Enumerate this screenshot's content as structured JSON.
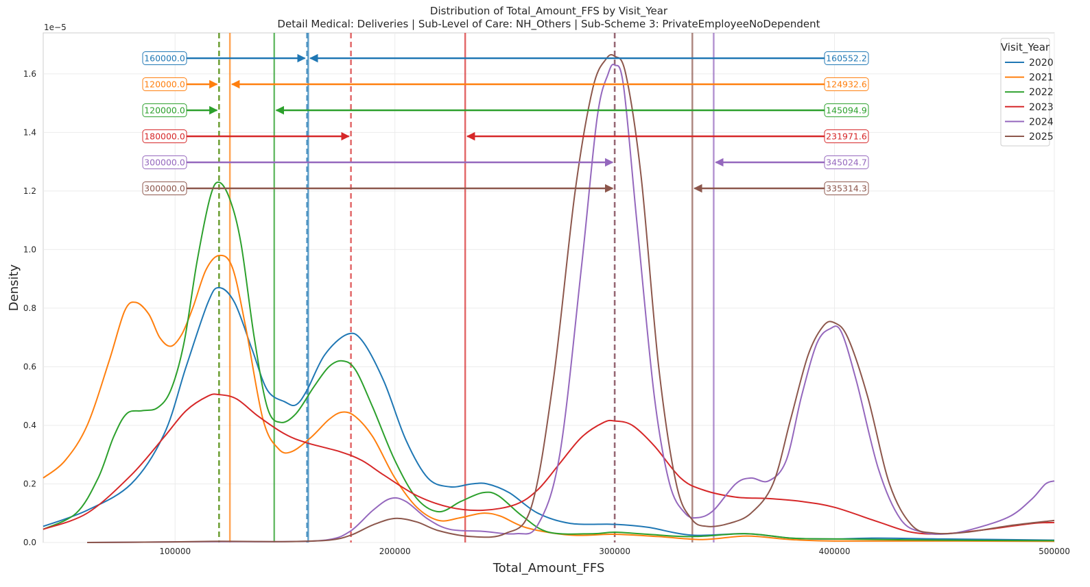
{
  "chart_data": {
    "type": "line",
    "title": "Distribution of Total_Amount_FFS by Visit_Year",
    "subtitle": "Detail Medical: Deliveries | Sub-Level of Care: NH_Others | Sub-Scheme 3: PrivateEmployeeNoDependent",
    "xlabel": "Total_Amount_FFS",
    "ylabel": "Density",
    "y_offset_label": "1e−5",
    "xlim": [
      40000,
      500000
    ],
    "ylim": [
      0,
      1.74
    ],
    "y_units_note": "values shown in units of 1e-5",
    "x_ticks": [
      100000,
      200000,
      300000,
      400000,
      500000
    ],
    "y_ticks": [
      0.0,
      0.2,
      0.4,
      0.6,
      0.8,
      1.0,
      1.2,
      1.4,
      1.6
    ],
    "grid": true,
    "legend_title": "Visit_Year",
    "legend_position": "top-right",
    "series": [
      {
        "name": "2020",
        "color": "#1f77b4",
        "median": 160000.0,
        "mean": 160552.2,
        "median_label": "160000.0",
        "mean_label": "160552.2",
        "points": [
          [
            40000,
            0.055
          ],
          [
            60000,
            0.11
          ],
          [
            80000,
            0.2
          ],
          [
            95000,
            0.37
          ],
          [
            105000,
            0.6
          ],
          [
            115000,
            0.82
          ],
          [
            120000,
            0.87
          ],
          [
            127000,
            0.82
          ],
          [
            135000,
            0.66
          ],
          [
            142000,
            0.52
          ],
          [
            150000,
            0.48
          ],
          [
            155000,
            0.47
          ],
          [
            160000,
            0.52
          ],
          [
            168000,
            0.64
          ],
          [
            178000,
            0.71
          ],
          [
            185000,
            0.69
          ],
          [
            195000,
            0.55
          ],
          [
            205000,
            0.35
          ],
          [
            215000,
            0.22
          ],
          [
            225000,
            0.19
          ],
          [
            235000,
            0.2
          ],
          [
            242000,
            0.2
          ],
          [
            252000,
            0.17
          ],
          [
            265000,
            0.1
          ],
          [
            280000,
            0.065
          ],
          [
            300000,
            0.062
          ],
          [
            315000,
            0.052
          ],
          [
            335000,
            0.025
          ],
          [
            360000,
            0.03
          ],
          [
            380000,
            0.015
          ],
          [
            400000,
            0.012
          ],
          [
            420000,
            0.015
          ],
          [
            450000,
            0.012
          ],
          [
            500000,
            0.008
          ]
        ]
      },
      {
        "name": "2021",
        "color": "#ff7f0e",
        "median": 120000.0,
        "mean": 124932.6,
        "median_label": "120000.0",
        "mean_label": "124932.6",
        "points": [
          [
            40000,
            0.22
          ],
          [
            50000,
            0.28
          ],
          [
            60000,
            0.4
          ],
          [
            70000,
            0.62
          ],
          [
            77000,
            0.79
          ],
          [
            82000,
            0.82
          ],
          [
            88000,
            0.78
          ],
          [
            93000,
            0.7
          ],
          [
            98000,
            0.67
          ],
          [
            103000,
            0.71
          ],
          [
            108000,
            0.8
          ],
          [
            114000,
            0.93
          ],
          [
            120000,
            0.98
          ],
          [
            126000,
            0.94
          ],
          [
            132000,
            0.74
          ],
          [
            140000,
            0.42
          ],
          [
            147000,
            0.32
          ],
          [
            153000,
            0.31
          ],
          [
            162000,
            0.36
          ],
          [
            170000,
            0.42
          ],
          [
            176000,
            0.445
          ],
          [
            182000,
            0.43
          ],
          [
            190000,
            0.36
          ],
          [
            200000,
            0.22
          ],
          [
            210000,
            0.12
          ],
          [
            220000,
            0.075
          ],
          [
            230000,
            0.085
          ],
          [
            240000,
            0.1
          ],
          [
            248000,
            0.09
          ],
          [
            260000,
            0.05
          ],
          [
            280000,
            0.025
          ],
          [
            300000,
            0.028
          ],
          [
            320000,
            0.02
          ],
          [
            340000,
            0.01
          ],
          [
            360000,
            0.022
          ],
          [
            380000,
            0.01
          ],
          [
            400000,
            0.005
          ],
          [
            450000,
            0.005
          ],
          [
            500000,
            0.004
          ]
        ]
      },
      {
        "name": "2022",
        "color": "#2ca02c",
        "median": 120000.0,
        "mean": 145094.9,
        "median_label": "120000.0",
        "mean_label": "145094.9",
        "points": [
          [
            40000,
            0.045
          ],
          [
            55000,
            0.1
          ],
          [
            65000,
            0.22
          ],
          [
            72000,
            0.36
          ],
          [
            78000,
            0.44
          ],
          [
            85000,
            0.45
          ],
          [
            92000,
            0.46
          ],
          [
            98000,
            0.52
          ],
          [
            104000,
            0.68
          ],
          [
            110000,
            0.96
          ],
          [
            116000,
            1.18
          ],
          [
            120000,
            1.23
          ],
          [
            125000,
            1.17
          ],
          [
            130000,
            1.02
          ],
          [
            136000,
            0.7
          ],
          [
            142000,
            0.46
          ],
          [
            148000,
            0.41
          ],
          [
            155000,
            0.44
          ],
          [
            163000,
            0.53
          ],
          [
            170000,
            0.6
          ],
          [
            176000,
            0.62
          ],
          [
            182000,
            0.59
          ],
          [
            190000,
            0.46
          ],
          [
            200000,
            0.28
          ],
          [
            210000,
            0.15
          ],
          [
            220000,
            0.105
          ],
          [
            230000,
            0.14
          ],
          [
            240000,
            0.17
          ],
          [
            247000,
            0.16
          ],
          [
            258000,
            0.09
          ],
          [
            270000,
            0.035
          ],
          [
            290000,
            0.03
          ],
          [
            300000,
            0.035
          ],
          [
            315000,
            0.028
          ],
          [
            335000,
            0.02
          ],
          [
            360000,
            0.03
          ],
          [
            380000,
            0.015
          ],
          [
            400000,
            0.012
          ],
          [
            450000,
            0.008
          ],
          [
            500000,
            0.006
          ]
        ]
      },
      {
        "name": "2023",
        "color": "#d62728",
        "median": 180000.0,
        "mean": 231971.6,
        "median_label": "180000.0",
        "mean_label": "231971.6",
        "points": [
          [
            40000,
            0.045
          ],
          [
            60000,
            0.1
          ],
          [
            80000,
            0.23
          ],
          [
            95000,
            0.36
          ],
          [
            105000,
            0.45
          ],
          [
            115000,
            0.5
          ],
          [
            120000,
            0.505
          ],
          [
            128000,
            0.49
          ],
          [
            138000,
            0.43
          ],
          [
            150000,
            0.37
          ],
          [
            160000,
            0.34
          ],
          [
            175000,
            0.31
          ],
          [
            185000,
            0.28
          ],
          [
            195000,
            0.23
          ],
          [
            210000,
            0.16
          ],
          [
            225000,
            0.12
          ],
          [
            240000,
            0.11
          ],
          [
            255000,
            0.13
          ],
          [
            265000,
            0.18
          ],
          [
            275000,
            0.27
          ],
          [
            285000,
            0.36
          ],
          [
            295000,
            0.41
          ],
          [
            300000,
            0.415
          ],
          [
            308000,
            0.4
          ],
          [
            318000,
            0.33
          ],
          [
            330000,
            0.22
          ],
          [
            340000,
            0.18
          ],
          [
            355000,
            0.155
          ],
          [
            370000,
            0.15
          ],
          [
            385000,
            0.14
          ],
          [
            400000,
            0.12
          ],
          [
            420000,
            0.07
          ],
          [
            435000,
            0.035
          ],
          [
            450000,
            0.03
          ],
          [
            470000,
            0.045
          ],
          [
            490000,
            0.065
          ],
          [
            500000,
            0.068
          ]
        ]
      },
      {
        "name": "2024",
        "color": "#9467bd",
        "median": 300000.0,
        "mean": 345024.7,
        "median_label": "300000.0",
        "mean_label": "345024.7",
        "points": [
          [
            60000,
            0.0
          ],
          [
            100000,
            0.002
          ],
          [
            120000,
            0.003
          ],
          [
            150000,
            0.003
          ],
          [
            170000,
            0.01
          ],
          [
            180000,
            0.04
          ],
          [
            190000,
            0.11
          ],
          [
            198000,
            0.15
          ],
          [
            205000,
            0.14
          ],
          [
            215000,
            0.08
          ],
          [
            225000,
            0.045
          ],
          [
            240000,
            0.038
          ],
          [
            255000,
            0.03
          ],
          [
            265000,
            0.06
          ],
          [
            275000,
            0.3
          ],
          [
            285000,
            0.95
          ],
          [
            292000,
            1.45
          ],
          [
            297000,
            1.6
          ],
          [
            300000,
            1.63
          ],
          [
            304000,
            1.56
          ],
          [
            310000,
            1.1
          ],
          [
            318000,
            0.5
          ],
          [
            325000,
            0.2
          ],
          [
            332000,
            0.1
          ],
          [
            338000,
            0.085
          ],
          [
            345000,
            0.11
          ],
          [
            355000,
            0.2
          ],
          [
            362000,
            0.22
          ],
          [
            370000,
            0.21
          ],
          [
            378000,
            0.28
          ],
          [
            385000,
            0.5
          ],
          [
            392000,
            0.68
          ],
          [
            398000,
            0.73
          ],
          [
            403000,
            0.72
          ],
          [
            410000,
            0.55
          ],
          [
            420000,
            0.25
          ],
          [
            430000,
            0.08
          ],
          [
            440000,
            0.035
          ],
          [
            452000,
            0.03
          ],
          [
            465000,
            0.05
          ],
          [
            480000,
            0.09
          ],
          [
            490000,
            0.15
          ],
          [
            496000,
            0.2
          ],
          [
            500000,
            0.21
          ]
        ]
      },
      {
        "name": "2025",
        "color": "#8c564b",
        "median": 300000.0,
        "mean": 335314.3,
        "median_label": "300000.0",
        "mean_label": "335314.3",
        "points": [
          [
            60000,
            0.0
          ],
          [
            100000,
            0.002
          ],
          [
            120000,
            0.004
          ],
          [
            150000,
            0.003
          ],
          [
            170000,
            0.008
          ],
          [
            180000,
            0.025
          ],
          [
            190000,
            0.06
          ],
          [
            200000,
            0.082
          ],
          [
            210000,
            0.07
          ],
          [
            220000,
            0.04
          ],
          [
            235000,
            0.02
          ],
          [
            250000,
            0.03
          ],
          [
            262000,
            0.12
          ],
          [
            272000,
            0.55
          ],
          [
            282000,
            1.2
          ],
          [
            290000,
            1.55
          ],
          [
            296000,
            1.65
          ],
          [
            300000,
            1.66
          ],
          [
            305000,
            1.6
          ],
          [
            312000,
            1.25
          ],
          [
            320000,
            0.6
          ],
          [
            328000,
            0.2
          ],
          [
            335000,
            0.08
          ],
          [
            342000,
            0.055
          ],
          [
            352000,
            0.065
          ],
          [
            362000,
            0.1
          ],
          [
            372000,
            0.2
          ],
          [
            380000,
            0.42
          ],
          [
            388000,
            0.64
          ],
          [
            395000,
            0.74
          ],
          [
            400000,
            0.75
          ],
          [
            406000,
            0.7
          ],
          [
            415000,
            0.5
          ],
          [
            425000,
            0.2
          ],
          [
            435000,
            0.06
          ],
          [
            445000,
            0.032
          ],
          [
            460000,
            0.035
          ],
          [
            480000,
            0.058
          ],
          [
            500000,
            0.075
          ]
        ]
      }
    ]
  }
}
